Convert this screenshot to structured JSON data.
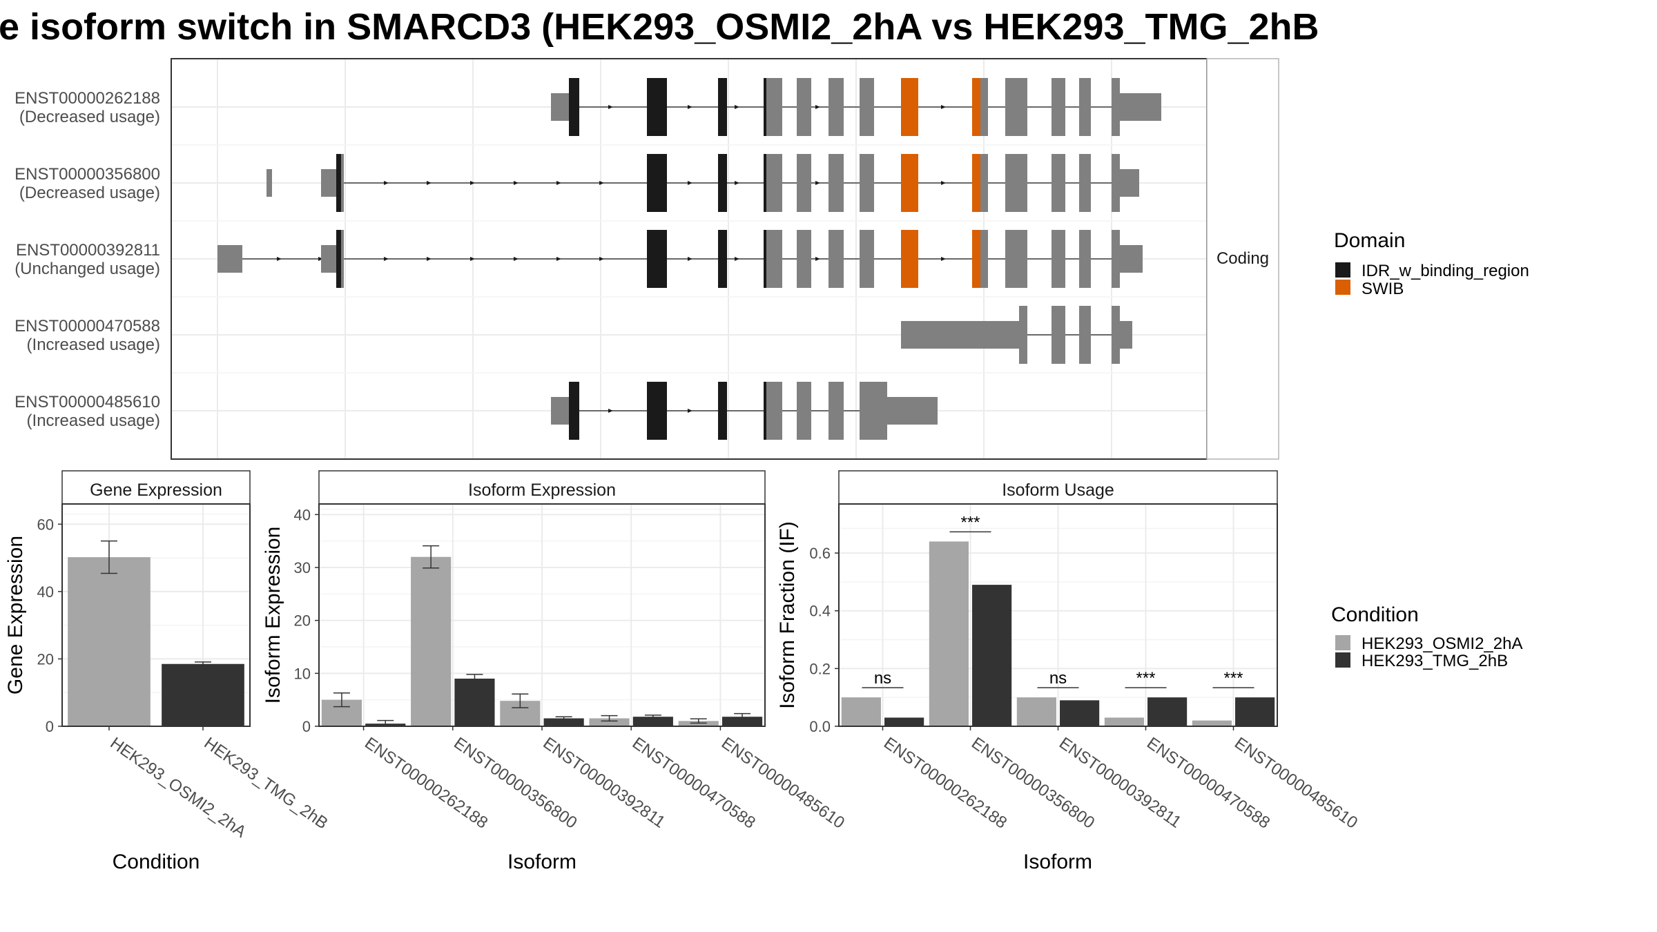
{
  "title": "e isoform switch in SMARCD3 (HEK293_OSMI2_2hA vs HEK293_TMG_2hB",
  "colors": {
    "utr": "#808080",
    "idr": "#1a1a1a",
    "swib": "#d95f02",
    "cond_a": "#a6a6a6",
    "cond_b": "#333333",
    "grid": "#ebebeb",
    "frame": "#333333"
  },
  "transcript_panel": {
    "strip_label": "Coding",
    "transcripts": [
      {
        "id": "ENST00000262188",
        "status": "(Decreased usage)"
      },
      {
        "id": "ENST00000356800",
        "status": "(Decreased usage)"
      },
      {
        "id": "ENST00000392811",
        "status": "(Unchanged usage)"
      },
      {
        "id": "ENST00000470588",
        "status": "(Increased usage)"
      },
      {
        "id": "ENST00000485610",
        "status": "(Increased usage)"
      }
    ]
  },
  "legends": {
    "domain": {
      "title": "Domain",
      "items": [
        {
          "label": "IDR_w_binding_region",
          "color": "#1a1a1a"
        },
        {
          "label": "SWIB",
          "color": "#d95f02"
        }
      ]
    },
    "condition": {
      "title": "Condition",
      "items": [
        {
          "label": "HEK293_OSMI2_2hA",
          "color": "#a6a6a6"
        },
        {
          "label": "HEK293_TMG_2hB",
          "color": "#333333"
        }
      ]
    }
  },
  "chart_data": [
    {
      "type": "bar",
      "title": "Gene Expression",
      "xlabel": "Condition",
      "ylabel": "Gene Expression",
      "ylim": [
        0,
        66
      ],
      "yticks": [
        0,
        20,
        40,
        60
      ],
      "categories": [
        "HEK293_OSMI2_2hA",
        "HEK293_TMG_2hB"
      ],
      "series": [
        {
          "name": "HEK293_OSMI2_2hA",
          "values": [
            50.2,
            null
          ],
          "err": [
            4.8,
            null
          ]
        },
        {
          "name": "HEK293_TMG_2hB",
          "values": [
            null,
            18.5
          ],
          "err": [
            null,
            0.6
          ]
        }
      ]
    },
    {
      "type": "bar",
      "title": "Isoform Expression",
      "xlabel": "Isoform",
      "ylabel": "Isoform Expression",
      "ylim": [
        0,
        42
      ],
      "yticks": [
        0,
        10,
        20,
        30,
        40
      ],
      "categories": [
        "ENST00000262188",
        "ENST00000356800",
        "ENST00000392811",
        "ENST00000470588",
        "ENST00000485610"
      ],
      "series": [
        {
          "name": "HEK293_OSMI2_2hA",
          "values": [
            5.0,
            32.0,
            4.8,
            1.5,
            1.0
          ],
          "err": [
            1.3,
            2.1,
            1.3,
            0.5,
            0.4
          ]
        },
        {
          "name": "HEK293_TMG_2hB",
          "values": [
            0.5,
            9.0,
            1.5,
            1.8,
            1.8
          ],
          "err": [
            0.6,
            0.8,
            0.3,
            0.3,
            0.6
          ]
        }
      ]
    },
    {
      "type": "bar",
      "title": "Isoform Usage",
      "xlabel": "Isoform",
      "ylabel": "Isoform Fraction (IF)",
      "ylim": [
        0,
        0.77
      ],
      "yticks": [
        0.0,
        0.2,
        0.4,
        0.6
      ],
      "ytick_labels": [
        "0.0",
        "0.2",
        "0.4",
        "0.6"
      ],
      "categories": [
        "ENST00000262188",
        "ENST00000356800",
        "ENST00000392811",
        "ENST00000470588",
        "ENST00000485610"
      ],
      "series": [
        {
          "name": "HEK293_OSMI2_2hA",
          "values": [
            0.1,
            0.64,
            0.1,
            0.03,
            0.02
          ]
        },
        {
          "name": "HEK293_TMG_2hB",
          "values": [
            0.03,
            0.49,
            0.09,
            0.1,
            0.1
          ]
        }
      ],
      "significance": [
        "ns",
        "***",
        "ns",
        "***",
        "***"
      ]
    }
  ]
}
